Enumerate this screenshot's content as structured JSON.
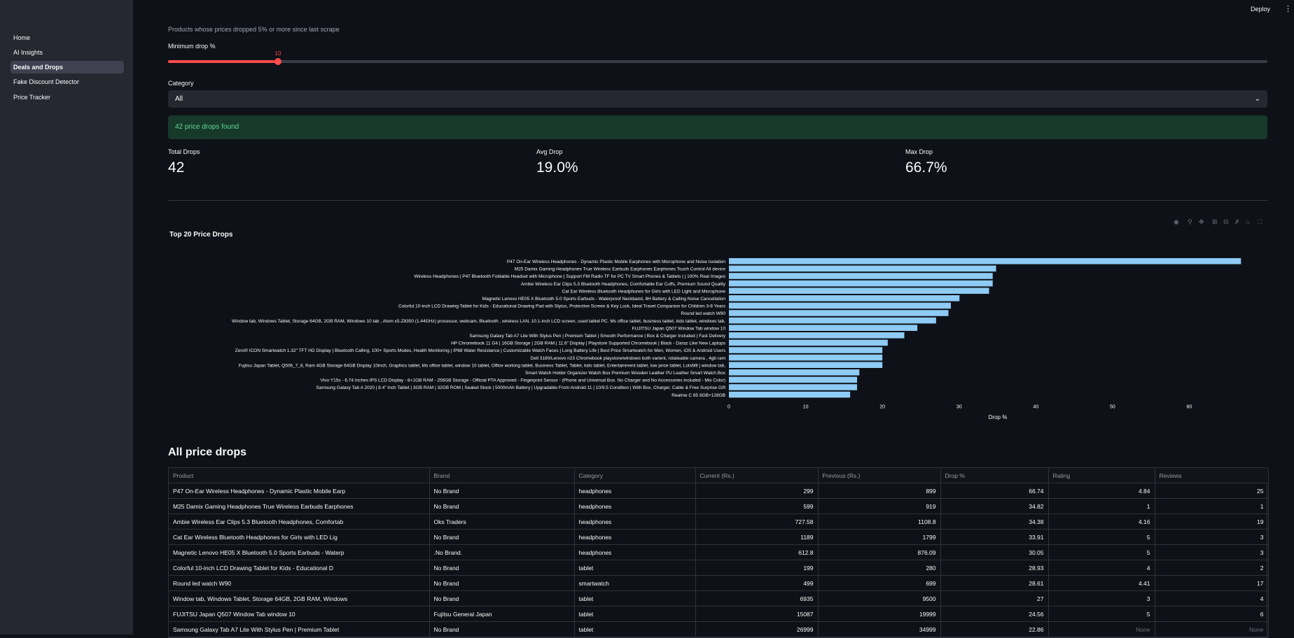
{
  "sidebar": {
    "items": [
      {
        "label": "Home",
        "active": false
      },
      {
        "label": "AI Insights",
        "active": false
      },
      {
        "label": "Deals and Drops",
        "active": true
      },
      {
        "label": "Fake Discount Detector",
        "active": false
      },
      {
        "label": "Price Tracker",
        "active": false
      }
    ]
  },
  "header": {
    "deploy_label": "Deploy",
    "menu_icon": "more-vertical-icon"
  },
  "main": {
    "caption": "Products whose prices dropped 5% or more since last scrape",
    "slider": {
      "label": "Minimum drop %",
      "value": 10,
      "min": 0,
      "max": 100
    },
    "category": {
      "label": "Category",
      "selected": "All"
    },
    "success_message": "42 price drops found",
    "metrics": [
      {
        "label": "Total Drops",
        "value": "42"
      },
      {
        "label": "Avg Drop",
        "value": "19.0%"
      },
      {
        "label": "Max Drop",
        "value": "66.7%"
      }
    ],
    "table_title": "All price drops"
  },
  "chart_toolbar": [
    "camera-icon",
    "zoom-icon",
    "pan-icon",
    "zoom-in-icon",
    "zoom-out-icon",
    "autoscale-icon",
    "home-icon",
    "fullscreen-icon"
  ],
  "chart_data": {
    "type": "bar",
    "orientation": "horizontal",
    "title": "Top 20 Price Drops",
    "xlabel": "Drop %",
    "ylabel": "",
    "xlim": [
      0,
      70
    ],
    "xticks": [
      0,
      10,
      20,
      30,
      40,
      50,
      60
    ],
    "bar_color": "#8ecbf5",
    "categories": [
      "P47 On-Ear Wireless Headphones - Dynamic Plastic Mobile Earphones with Microphone and Noise Isolation",
      "M25 Damix Gaming Headphones True Wireless Earbuds Earphones Earphones Touch Control All device",
      "Wireless Headphones | P47 Bluetooth Foldable Headset with Microphone | Support FM Radio TF for PC TV Smart Phones & Tablets | | 100% Real Images",
      "Ambie Wireless Ear Clips 5.3 Bluetooth Headphones, Comfortable Ear Cuffs, Premium Sound Quality",
      "Cat Ear Wireless Bluetooth Headphones for Girls with LED Light and Microphone",
      "Magnetic Lenovo HE05 X Bluetooth 5.0 Sports Earbuds - Waterproof Neckband, 8H Battery & Calling Noise Cancellation",
      "Colorful 10-inch LCD Drawing Tablet for Kids - Educational Drawing Pad with Stylus, Protective Screen & Key Lock, Ideal Travel Companion for Children 3-8 Years",
      "Round led watch W90",
      "Window tab, Windows Tablet, Storage 64GB, 2GB RAM, Windows 10 tab , Atom x5-Z8350 (1.44GHz) processor, webcam, Bluetooth , wireless LAN, 10.1-inch LCD screen, used tablet PC. Ms office tablet, business tablet, kids tablet, windows tab,",
      "FUJITSU Japan Q507 Window Tab window 10",
      "Samsung Galaxy Tab A7 Lite With Stylus Pen | Premium Tablet | Smooth Performance | Box & Charger Included | Fast Delivery",
      "HP Chromebook 11 G4 | 16GB Storage | 2GB RAM | 11.6\" Display | Playstore Supported Chromebook | Black - Daraz Like New Laptops",
      "Zero® ICON Smartwatch 1.32\" TFT HD Display | Bluetooth Calling, 100+ Sports Modes, Health Monitoring | IP68 Water Resistance | Customizable Watch Faces | Long Battery Life | Best Price Smartwatch for Men, Women, iOS & Android Users",
      "Dell 3180/Lenovo n23 Chromebook playstore/windows both varient, rotateable camera , 4gb ram",
      "Fujitsu Japan Tablet, Q506_7_8, Ram 4GB Storage 64GB Display 10inch, Graphics tablet, Ms office tablet, window 10 tablet, Office working tablet, Business Tablet, Tablet, kids tablet, Entertainment tablet, low price tablet, LotsMll | window tab,",
      "Smart Watch Holder Organizer Watch Box Premium Wooden Leather PU Leather Smart Watch Box",
      "Vivo Y15s - 6.74 Inches IPS LCD Display - 8+1GB RAM - 256GB Storage - Official PTA Approved - Fingerprint Sensor - (Phone and Universal Box. No Charger and No Accessories included - Mix Color)",
      "Samsung Galaxy Tab A 2020 | 8.4\" Inch Tablet | 3GB RAM | 32GB ROM | Sealed Stock | 5000mAh Battery | Upgradable From Android 11 | 10/9.5 Condition | With Box, Charger, Cable & Free Surprise Gift",
      "Realme C 85 8GB+128GB"
    ],
    "values": [
      66.74,
      34.82,
      34.38,
      34.38,
      33.91,
      30.05,
      28.93,
      28.61,
      27,
      24.56,
      22.86,
      20.7,
      20.0,
      20.0,
      20.0,
      17.0,
      16.7,
      16.7,
      15.8
    ]
  },
  "table": {
    "columns": [
      "Product",
      "Brand",
      "Category",
      "Current (Rs.)",
      "Previous (Rs.)",
      "Drop %",
      "Rating",
      "Reviews"
    ],
    "rows": [
      [
        "P47 On-Ear Wireless Headphones - Dynamic Plastic Mobile Earp",
        "No Brand",
        "headphones",
        "299",
        "899",
        "66.74",
        "4.84",
        "25"
      ],
      [
        "M25 Damix Gaming Headphones True Wireless Earbuds Earphones",
        "No Brand",
        "headphones",
        "599",
        "919",
        "34.82",
        "1",
        "1"
      ],
      [
        "Ambie Wireless Ear Clips 5.3 Bluetooth Headphones, Comfortab",
        "Oks Traders",
        "headphones",
        "727.58",
        "1108.8",
        "34.38",
        "4.16",
        "19"
      ],
      [
        "Cat Ear Wireless Bluetooth Headphones for Girls with LED Lig",
        "No Brand",
        "headphones",
        "1189",
        "1799",
        "33.91",
        "5",
        "3"
      ],
      [
        "Magnetic Lenovo HE05 X Bluetooth 5.0 Sports Earbuds - Waterp",
        ".No Brand.",
        "headphones",
        "612.8",
        "876.09",
        "30.05",
        "5",
        "3"
      ],
      [
        "Colorful 10-inch LCD Drawing Tablet for Kids - Educational D",
        "No Brand",
        "tablet",
        "199",
        "280",
        "28.93",
        "4",
        "2"
      ],
      [
        "Round led watch W90",
        "No Brand",
        "smartwatch",
        "499",
        "699",
        "28.61",
        "4.41",
        "17"
      ],
      [
        "Window tab,  Windows Tablet, Storage 64GB, 2GB RAM, Windows",
        "No Brand",
        "tablet",
        "6935",
        "9500",
        "27",
        "3",
        "4"
      ],
      [
        "FUJITSU Japan Q507 Window Tab window 10",
        "Fujitsu General Japan",
        "tablet",
        "15087",
        "19999",
        "24.56",
        "5",
        "6"
      ],
      [
        "Samsung Galaxy Tab A7 Lite With Stylus Pen | Premium Tablet",
        "No Brand",
        "tablet",
        "26999",
        "34999",
        "22.86",
        "None",
        "None"
      ]
    ]
  }
}
